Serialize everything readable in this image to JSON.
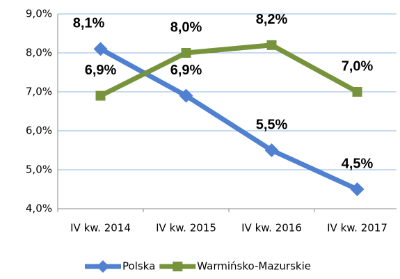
{
  "chart_data": {
    "type": "line",
    "categories": [
      "IV kw. 2014",
      "IV kw. 2015",
      "IV kw. 2016",
      "IV kw. 2017"
    ],
    "series": [
      {
        "name": "Polska",
        "color": "#4f81d0",
        "marker": "diamond",
        "values": [
          8.1,
          6.9,
          5.5,
          4.5
        ],
        "value_labels": [
          "8,1%",
          "6,9%",
          "5,5%",
          "4,5%"
        ]
      },
      {
        "name": "Warmińsko-Mazurskie",
        "color": "#77933c",
        "marker": "square",
        "values": [
          6.9,
          8.0,
          8.2,
          7.0
        ],
        "value_labels": [
          "6,9%",
          "8,0%",
          "8,2%",
          "7,0%"
        ]
      }
    ],
    "ylim": [
      4.0,
      9.0
    ],
    "yticks": [
      {
        "value": 4.0,
        "label": "4,0%"
      },
      {
        "value": 5.0,
        "label": "5,0%"
      },
      {
        "value": 6.0,
        "label": "6,0%"
      },
      {
        "value": 7.0,
        "label": "7,0%"
      },
      {
        "value": 8.0,
        "label": "8,0%"
      },
      {
        "value": 9.0,
        "label": "9,0%"
      }
    ],
    "grid": true,
    "legend": "bottom"
  }
}
